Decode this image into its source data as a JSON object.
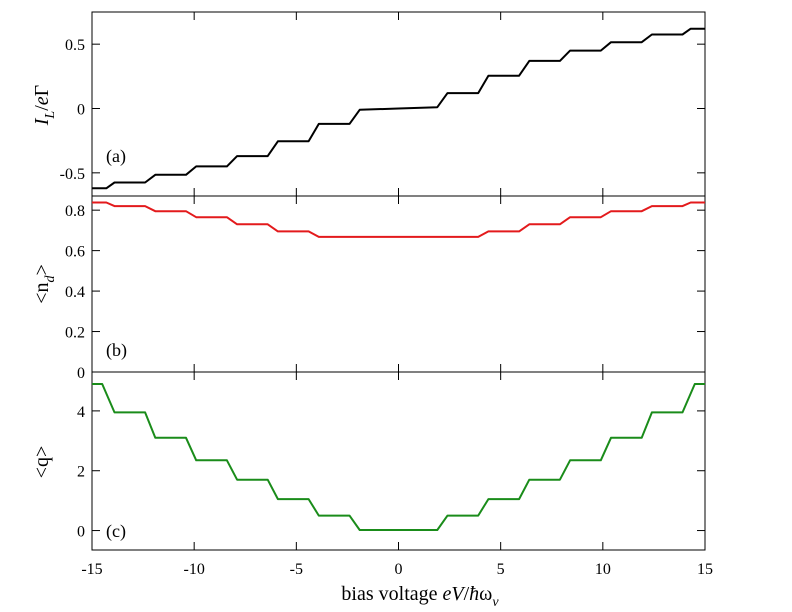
{
  "chart_data": {
    "type": "line",
    "x_range": [
      -15,
      15
    ],
    "x_ticks": [
      -15,
      -10,
      -5,
      0,
      5,
      10,
      15
    ],
    "x_tick_labels": [
      "-15",
      "-10",
      "-5",
      "0",
      "5",
      "10",
      "15"
    ],
    "xlabel": {
      "plain": "bias voltage ",
      "italic": "eV",
      "slash": "/",
      "hbar": "ħ",
      "omega": "ω",
      "sub": "ν"
    },
    "panels": [
      {
        "id": "a",
        "panel_label": "(a)",
        "ylabel": {
          "main": "I",
          "sub": "L",
          "rest": "/",
          "italic2": "e",
          "greek": "Γ"
        },
        "ylim": [
          -0.68,
          0.75
        ],
        "y_ticks": [
          0.5,
          0,
          -0.5
        ],
        "y_tick_labels": [
          "0.5",
          "0",
          "-0.5"
        ],
        "color": "#000000",
        "series": [
          {
            "name": "I_L/eΓ",
            "x": [
              -15,
              -14.3,
              -13.9,
              -12.4,
              -11.9,
              -10.4,
              -9.9,
              -8.4,
              -7.9,
              -6.4,
              -5.9,
              -4.4,
              -3.9,
              -2.4,
              -1.9,
              0,
              1.9,
              2.4,
              3.9,
              4.4,
              5.9,
              6.4,
              7.9,
              8.4,
              9.9,
              10.4,
              11.9,
              12.4,
              13.9,
              14.3,
              15
            ],
            "y": [
              -0.62,
              -0.62,
              -0.575,
              -0.575,
              -0.515,
              -0.515,
              -0.45,
              -0.45,
              -0.37,
              -0.37,
              -0.255,
              -0.255,
              -0.12,
              -0.12,
              -0.01,
              0.0,
              0.01,
              0.12,
              0.12,
              0.255,
              0.255,
              0.37,
              0.37,
              0.45,
              0.45,
              0.515,
              0.515,
              0.575,
              0.575,
              0.62,
              0.62
            ]
          }
        ]
      },
      {
        "id": "b",
        "panel_label": "(b)",
        "ylabel": {
          "main": "<n",
          "sub": "d",
          "rest": ">"
        },
        "ylim": [
          0,
          0.87
        ],
        "y_ticks": [
          0.8,
          0.6,
          0.4,
          0.2,
          0
        ],
        "y_tick_labels": [
          "0.8",
          "0.6",
          "0.4",
          "0.2",
          "0"
        ],
        "color": "#e31a1c",
        "series": [
          {
            "name": "<n_d>",
            "x": [
              -15,
              -14.3,
              -13.9,
              -12.4,
              -11.9,
              -10.4,
              -9.9,
              -8.4,
              -7.9,
              -6.4,
              -5.9,
              -4.4,
              -3.9,
              3.9,
              4.4,
              5.9,
              6.4,
              7.9,
              8.4,
              9.9,
              10.4,
              11.9,
              12.4,
              13.9,
              14.3,
              15
            ],
            "y": [
              0.838,
              0.838,
              0.82,
              0.82,
              0.795,
              0.795,
              0.765,
              0.765,
              0.73,
              0.73,
              0.695,
              0.695,
              0.668,
              0.668,
              0.695,
              0.695,
              0.73,
              0.73,
              0.765,
              0.765,
              0.795,
              0.795,
              0.82,
              0.82,
              0.838,
              0.838
            ]
          }
        ]
      },
      {
        "id": "c",
        "panel_label": "(c)",
        "ylabel": {
          "main": "<q>"
        },
        "ylim": [
          -0.65,
          5.3
        ],
        "y_ticks": [
          4,
          2,
          0
        ],
        "y_tick_labels": [
          "4",
          "2",
          "0"
        ],
        "color": "#1a8c1a",
        "series": [
          {
            "name": "<q>",
            "x": [
              -15,
              -14.5,
              -13.9,
              -12.4,
              -11.9,
              -10.4,
              -9.9,
              -8.4,
              -7.9,
              -6.4,
              -5.9,
              -4.4,
              -3.9,
              -2.4,
              -1.9,
              1.9,
              2.4,
              3.9,
              4.4,
              5.9,
              6.4,
              7.9,
              8.4,
              9.9,
              10.4,
              11.9,
              12.4,
              13.9,
              14.5,
              15
            ],
            "y": [
              4.9,
              4.9,
              3.95,
              3.95,
              3.1,
              3.1,
              2.35,
              2.35,
              1.7,
              1.7,
              1.05,
              1.05,
              0.5,
              0.5,
              0.02,
              0.02,
              0.5,
              0.5,
              1.05,
              1.05,
              1.7,
              1.7,
              2.35,
              2.35,
              3.1,
              3.1,
              3.95,
              3.95,
              4.9,
              4.9
            ]
          }
        ]
      }
    ]
  }
}
